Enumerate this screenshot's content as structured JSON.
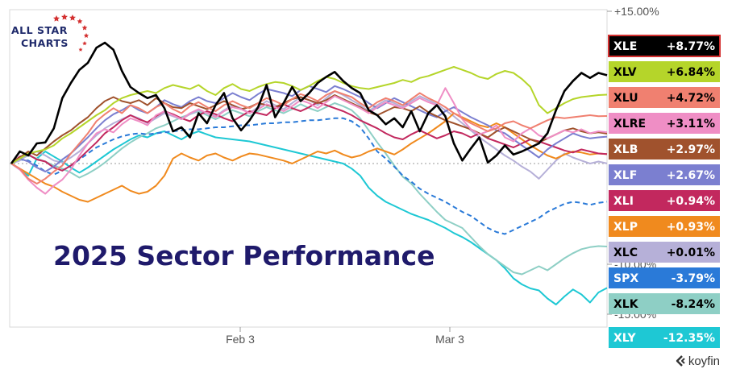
{
  "brand": {
    "logo_line1": "ALL STAR",
    "logo_line2": "CHARTS",
    "source": "koyfin"
  },
  "chart_data": {
    "type": "line",
    "title": "2025 Sector Performance",
    "x_tick_labels": [
      "Feb 3",
      "Mar 3"
    ],
    "y_tick_labels": [
      "+15.00%",
      "-10.00%",
      "-15.00%"
    ],
    "ylim": [
      -15,
      15
    ],
    "grid": false,
    "zero_line": "dotted",
    "legend_placement": "right",
    "series": [
      {
        "name": "XLE",
        "label": "+8.77%",
        "color": "#000000",
        "text_color": "#ffffff",
        "border": "#d32f2f",
        "values": [
          0,
          1.2,
          0.8,
          2.0,
          2.1,
          3.5,
          6.5,
          8.0,
          9.3,
          10.0,
          11.5,
          12.0,
          11.3,
          9.2,
          7.6,
          7.0,
          6.5,
          6.8,
          5.5,
          3.2,
          3.6,
          2.6,
          5.0,
          4.0,
          5.8,
          7.0,
          4.5,
          3.3,
          4.3,
          5.6,
          7.8,
          4.6,
          6.0,
          7.6,
          6.2,
          7.0,
          8.0,
          8.6,
          9.1,
          8.2,
          7.5,
          7.0,
          5.3,
          4.8,
          3.9,
          4.5,
          3.6,
          5.2,
          3.2,
          5.0,
          5.8,
          4.7,
          2.0,
          0.3,
          1.5,
          2.6,
          0.1,
          0.8,
          1.8,
          0.9,
          1.2,
          1.6,
          2.0,
          3.0,
          5.3,
          7.2,
          8.2,
          9.0,
          8.5,
          9.0,
          8.77
        ]
      },
      {
        "name": "XLV",
        "label": "+6.84%",
        "color": "#b5d52a",
        "text_color": "#000000",
        "values": [
          0,
          0.5,
          1.0,
          1.2,
          1.4,
          1.8,
          2.5,
          3.0,
          3.6,
          4.2,
          4.8,
          5.3,
          6.0,
          6.5,
          6.8,
          7.0,
          7.2,
          7.0,
          7.5,
          7.8,
          7.6,
          7.4,
          7.8,
          7.2,
          6.8,
          7.5,
          7.9,
          7.4,
          7.2,
          7.6,
          7.9,
          8.1,
          8.0,
          7.7,
          7.3,
          7.7,
          8.2,
          8.6,
          8.4,
          8.0,
          7.7,
          7.5,
          7.4,
          7.6,
          7.8,
          8.0,
          8.3,
          8.1,
          8.5,
          8.7,
          9.0,
          9.3,
          9.6,
          9.3,
          9.0,
          8.6,
          8.4,
          8.9,
          9.2,
          9.0,
          8.4,
          7.6,
          5.8,
          5.0,
          5.5,
          6.0,
          6.4,
          6.6,
          6.7,
          6.8,
          6.84
        ]
      },
      {
        "name": "XLU",
        "label": "+4.72%",
        "color": "#f08070",
        "text_color": "#000000",
        "values": [
          0,
          -0.5,
          -1.5,
          -2.0,
          -1.5,
          -0.8,
          -0.2,
          1.0,
          2.0,
          3.0,
          4.2,
          4.9,
          5.5,
          5.0,
          5.8,
          5.5,
          5.0,
          5.6,
          6.0,
          5.4,
          5.0,
          5.7,
          6.1,
          5.6,
          5.2,
          5.8,
          6.2,
          5.8,
          5.5,
          6.0,
          6.5,
          6.2,
          5.8,
          6.4,
          6.9,
          6.6,
          6.2,
          6.8,
          7.2,
          6.9,
          6.6,
          6.0,
          5.5,
          6.1,
          6.5,
          6.2,
          5.8,
          6.4,
          7.0,
          6.5,
          6.1,
          5.6,
          5.0,
          4.5,
          4.0,
          3.6,
          3.2,
          3.5,
          4.0,
          4.2,
          3.8,
          3.5,
          3.9,
          4.3,
          4.6,
          4.5,
          4.6,
          4.7,
          4.8,
          4.7,
          4.72
        ]
      },
      {
        "name": "XLRE",
        "label": "+3.11%",
        "color": "#ef8ec5",
        "text_color": "#000000",
        "values": [
          0,
          -0.6,
          -1.6,
          -2.4,
          -3.0,
          -2.2,
          -1.6,
          -0.6,
          0.8,
          2.0,
          3.0,
          3.4,
          3.1,
          3.9,
          4.5,
          4.2,
          3.8,
          4.8,
          5.2,
          4.8,
          4.4,
          5.0,
          5.4,
          5.0,
          4.6,
          5.2,
          5.6,
          5.4,
          5.0,
          5.4,
          5.9,
          5.6,
          5.2,
          5.7,
          6.3,
          6.0,
          5.5,
          6.1,
          6.7,
          6.3,
          5.9,
          5.5,
          5.0,
          5.6,
          6.1,
          5.8,
          5.5,
          6.0,
          6.5,
          6.1,
          5.8,
          7.5,
          6.0,
          4.4,
          3.4,
          2.9,
          3.2,
          3.8,
          2.6,
          2.2,
          3.0,
          3.5,
          2.8,
          2.5,
          2.9,
          3.3,
          3.1,
          3.4,
          3.0,
          3.2,
          3.11
        ]
      },
      {
        "name": "XLB",
        "label": "+2.97%",
        "color": "#a0522d",
        "text_color": "#ffffff",
        "values": [
          0,
          0.6,
          1.2,
          0.8,
          1.5,
          2.2,
          2.8,
          3.3,
          4.0,
          4.6,
          5.5,
          6.2,
          6.6,
          6.2,
          6.0,
          6.3,
          5.8,
          6.5,
          6.0,
          5.6,
          5.5,
          6.0,
          5.7,
          5.4,
          5.8,
          6.2,
          5.8,
          5.4,
          5.6,
          6.0,
          5.8,
          5.6,
          6.0,
          6.4,
          6.6,
          6.3,
          6.0,
          6.3,
          6.8,
          6.4,
          6.0,
          5.6,
          5.1,
          4.8,
          5.2,
          5.6,
          5.5,
          5.2,
          5.7,
          5.1,
          4.7,
          4.3,
          4.0,
          3.7,
          3.4,
          3.0,
          2.6,
          3.2,
          3.6,
          3.2,
          2.8,
          2.4,
          2.1,
          2.5,
          2.9,
          3.3,
          3.5,
          3.2,
          3.0,
          3.1,
          2.97
        ]
      },
      {
        "name": "XLF",
        "label": "+2.67%",
        "color": "#7b7fd0",
        "text_color": "#ffffff",
        "values": [
          0,
          0.5,
          0.2,
          -0.4,
          -0.8,
          -0.3,
          0.4,
          1.0,
          1.8,
          2.6,
          3.5,
          4.3,
          4.9,
          5.3,
          5.8,
          5.3,
          5.0,
          5.6,
          6.3,
          5.9,
          5.6,
          6.2,
          6.6,
          6.2,
          6.0,
          6.5,
          7.0,
          6.6,
          6.3,
          6.9,
          7.4,
          7.2,
          7.0,
          6.7,
          7.3,
          7.7,
          7.4,
          7.1,
          7.7,
          7.4,
          7.0,
          6.6,
          6.0,
          5.5,
          6.0,
          6.5,
          6.1,
          5.7,
          5.3,
          4.9,
          4.6,
          5.2,
          5.6,
          5.1,
          4.6,
          4.2,
          3.8,
          3.3,
          3.0,
          2.4,
          1.8,
          1.2,
          0.6,
          1.4,
          2.0,
          2.5,
          3.0,
          2.7,
          2.5,
          2.6,
          2.67
        ]
      },
      {
        "name": "XLI",
        "label": "+0.94%",
        "color": "#c2285e",
        "text_color": "#ffffff",
        "values": [
          0,
          0.7,
          0.9,
          0.4,
          0.2,
          -0.4,
          -0.7,
          -0.2,
          0.5,
          1.3,
          2.1,
          3.0,
          3.6,
          4.3,
          4.8,
          4.4,
          4.1,
          4.7,
          5.2,
          4.9,
          4.5,
          4.2,
          4.8,
          5.2,
          4.9,
          4.5,
          4.2,
          4.7,
          5.2,
          5.0,
          4.8,
          5.5,
          5.9,
          5.5,
          5.2,
          5.6,
          6.1,
          5.8,
          5.5,
          5.2,
          4.8,
          4.3,
          3.9,
          3.5,
          3.0,
          2.6,
          2.4,
          2.9,
          3.3,
          2.9,
          2.5,
          2.8,
          3.2,
          3.0,
          2.6,
          3.0,
          2.5,
          2.2,
          1.9,
          1.6,
          2.0,
          2.4,
          2.2,
          1.9,
          1.6,
          1.3,
          1.1,
          1.4,
          1.2,
          1.0,
          0.94
        ]
      },
      {
        "name": "XLP",
        "label": "+0.93%",
        "color": "#f08a1e",
        "text_color": "#ffffff",
        "values": [
          0,
          -0.5,
          -1.0,
          -1.5,
          -2.0,
          -2.3,
          -2.8,
          -3.2,
          -3.6,
          -3.8,
          -3.4,
          -3.0,
          -2.6,
          -2.2,
          -2.7,
          -3.0,
          -2.8,
          -2.2,
          -1.2,
          0.5,
          1.0,
          0.6,
          0.3,
          0.8,
          1.0,
          0.6,
          0.3,
          0.7,
          1.0,
          0.9,
          0.7,
          0.5,
          0.3,
          0.0,
          0.4,
          0.8,
          1.2,
          1.0,
          1.3,
          0.9,
          0.6,
          0.8,
          1.2,
          1.5,
          1.2,
          0.9,
          1.4,
          2.0,
          2.5,
          3.0,
          3.6,
          4.2,
          5.0,
          4.6,
          4.2,
          3.8,
          3.6,
          4.0,
          3.6,
          3.0,
          2.4,
          1.8,
          1.3,
          0.8,
          0.5,
          0.9,
          1.2,
          1.1,
          0.9,
          1.0,
          0.93
        ]
      },
      {
        "name": "XLC",
        "label": "+0.01%",
        "color": "#b6b0d8",
        "text_color": "#000000",
        "values": [
          0,
          0.3,
          0.9,
          1.2,
          0.8,
          0.3,
          0.1,
          0.6,
          1.2,
          2.0,
          2.8,
          3.5,
          4.0,
          4.4,
          4.8,
          4.5,
          4.0,
          4.5,
          5.0,
          4.7,
          4.4,
          4.9,
          5.3,
          5.0,
          4.7,
          5.3,
          5.8,
          5.5,
          5.0,
          5.6,
          6.2,
          5.8,
          5.4,
          6.0,
          6.6,
          6.3,
          5.8,
          6.5,
          7.2,
          6.8,
          6.3,
          5.8,
          5.2,
          5.8,
          6.3,
          6.0,
          5.6,
          6.2,
          6.7,
          6.3,
          5.9,
          5.3,
          4.7,
          4.0,
          3.3,
          2.6,
          2.0,
          1.4,
          0.8,
          0.3,
          -0.3,
          -0.8,
          -1.5,
          -0.6,
          0.3,
          1.0,
          0.6,
          0.3,
          0.0,
          0.2,
          0.01
        ]
      },
      {
        "name": "SPX",
        "label": "-3.79%",
        "color": "#2a7ad8",
        "text_color": "#ffffff",
        "dashed": true,
        "values": [
          0,
          0.4,
          0.3,
          -0.2,
          -0.8,
          -1.1,
          -0.7,
          -0.2,
          0.4,
          1.0,
          1.6,
          2.0,
          2.4,
          2.7,
          2.9,
          3.0,
          2.9,
          3.0,
          3.1,
          3.2,
          3.3,
          3.4,
          3.4,
          3.5,
          3.6,
          3.6,
          3.7,
          3.8,
          3.8,
          3.9,
          4.0,
          4.0,
          4.1,
          4.1,
          4.2,
          4.3,
          4.3,
          4.4,
          4.5,
          4.5,
          4.2,
          3.6,
          2.5,
          1.2,
          0.5,
          -0.3,
          -1.2,
          -1.8,
          -2.5,
          -3.0,
          -3.4,
          -3.8,
          -4.3,
          -4.8,
          -5.2,
          -5.8,
          -6.4,
          -6.8,
          -7.0,
          -6.6,
          -6.2,
          -5.8,
          -5.4,
          -4.8,
          -4.4,
          -4.0,
          -3.8,
          -3.9,
          -4.1,
          -3.9,
          -3.79
        ]
      },
      {
        "name": "XLK",
        "label": "-8.24%",
        "color": "#8ecfc5",
        "text_color": "#000000",
        "values": [
          0,
          0.4,
          0.8,
          0.5,
          0.2,
          -0.2,
          -0.5,
          -0.9,
          -1.4,
          -1.0,
          -0.5,
          0.1,
          0.8,
          1.5,
          2.1,
          2.6,
          3.0,
          3.5,
          3.8,
          4.2,
          4.6,
          4.9,
          5.2,
          4.8,
          4.4,
          4.8,
          5.3,
          5.0,
          4.7,
          5.2,
          5.6,
          5.3,
          5.0,
          5.4,
          5.9,
          5.5,
          5.2,
          5.6,
          6.0,
          5.7,
          5.3,
          4.5,
          3.3,
          2.1,
          1.0,
          -0.2,
          -1.3,
          -2.0,
          -3.0,
          -3.9,
          -4.8,
          -5.6,
          -6.0,
          -6.4,
          -7.3,
          -8.2,
          -9.0,
          -9.6,
          -10.2,
          -10.8,
          -11.0,
          -10.6,
          -10.2,
          -10.6,
          -10.0,
          -9.4,
          -8.9,
          -8.5,
          -8.3,
          -8.2,
          -8.24
        ]
      },
      {
        "name": "XLY",
        "label": "-12.35%",
        "color": "#1ec8d4",
        "text_color": "#ffffff",
        "values": [
          0,
          -0.6,
          -1.2,
          0.5,
          1.2,
          0.7,
          0.2,
          -0.4,
          -0.9,
          -0.4,
          0.2,
          0.8,
          1.4,
          1.9,
          2.4,
          2.8,
          2.6,
          3.0,
          3.2,
          2.8,
          2.4,
          2.9,
          3.2,
          2.9,
          2.6,
          2.5,
          2.4,
          2.3,
          2.2,
          2.0,
          1.8,
          1.6,
          1.4,
          1.2,
          1.0,
          0.8,
          0.6,
          0.4,
          0.2,
          0.0,
          -0.5,
          -1.2,
          -2.4,
          -3.2,
          -3.8,
          -4.2,
          -4.6,
          -5.0,
          -5.3,
          -5.6,
          -6.0,
          -6.4,
          -6.9,
          -7.3,
          -7.8,
          -8.4,
          -9.0,
          -9.6,
          -10.4,
          -11.4,
          -12.0,
          -12.4,
          -12.6,
          -13.4,
          -14.0,
          -13.2,
          -12.5,
          -13.0,
          -13.8,
          -12.8,
          -12.35
        ]
      }
    ]
  }
}
